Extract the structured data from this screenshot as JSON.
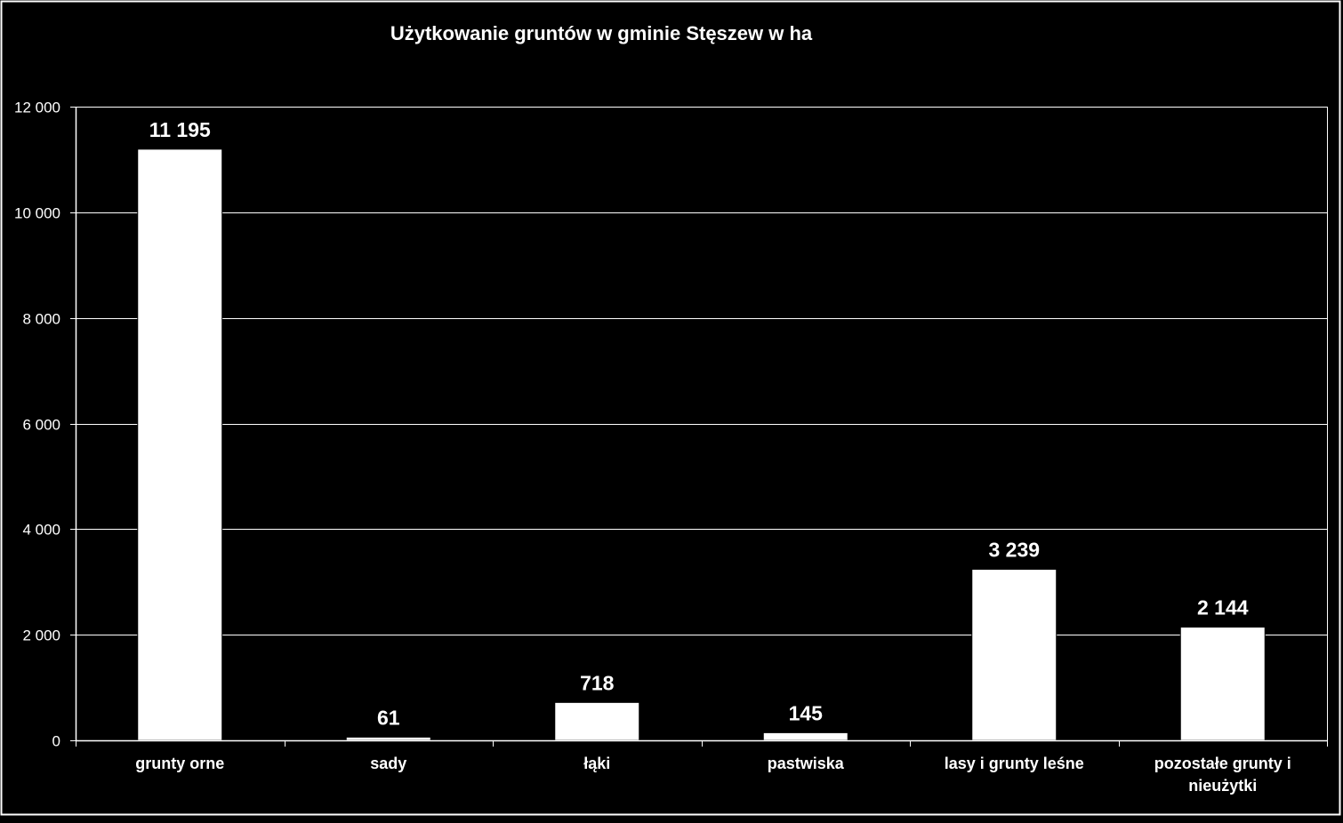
{
  "chart_data": {
    "type": "bar",
    "title": "Użytkowanie gruntów w gminie Stęszew w ha",
    "xlabel": "",
    "ylabel": "",
    "categories": [
      [
        "grunty orne"
      ],
      [
        "sady"
      ],
      [
        "łąki"
      ],
      [
        "pastwiska"
      ],
      [
        "lasy i grunty leśne"
      ],
      [
        "pozostałe grunty i",
        "nieużytki"
      ]
    ],
    "values": [
      11195,
      61,
      718,
      145,
      3239,
      2144
    ],
    "data_labels": [
      "11 195",
      "61",
      "718",
      "145",
      "3 239",
      "2 144"
    ],
    "ylim": [
      0,
      12000
    ],
    "y_ticks": [
      0,
      2000,
      4000,
      6000,
      8000,
      10000,
      12000
    ],
    "y_tick_labels": [
      "0",
      "2 000",
      "4 000",
      "6 000",
      "8 000",
      "10 000",
      "12 000"
    ],
    "grid": true,
    "legend": "none",
    "colors": {
      "background": "#000000",
      "bar_fill": "#ffffff",
      "grid": "#ffffff",
      "text": "#ffffff"
    }
  }
}
